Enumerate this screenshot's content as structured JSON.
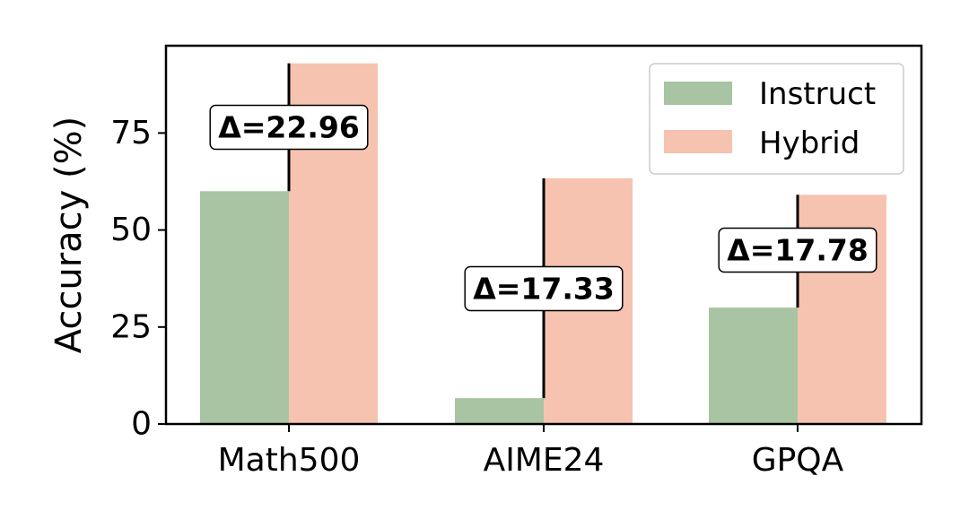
{
  "chart_data": {
    "type": "bar",
    "categories": [
      "Math500",
      "AIME24",
      "GPQA"
    ],
    "series": [
      {
        "name": "Instruct",
        "values": [
          60.0,
          6.67,
          30.0
        ],
        "color": "#a8c4a2"
      },
      {
        "name": "Hybrid",
        "values": [
          92.96,
          63.33,
          59.09
        ],
        "color": "#f5c3b0"
      }
    ],
    "annotations": [
      "Δ=22.96",
      "Δ=17.33",
      "Δ=17.78"
    ],
    "ylabel": "Accuracy (%)",
    "xlabel": "",
    "ylim": [
      0,
      97.5
    ],
    "yticks": [
      0,
      25,
      50,
      75
    ],
    "grid": false,
    "legend_position": "top-right"
  }
}
